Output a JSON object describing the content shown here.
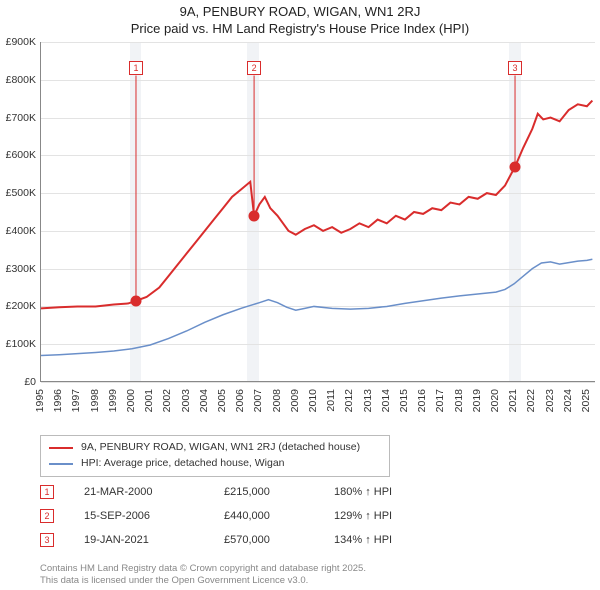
{
  "title": {
    "line1": "9A, PENBURY ROAD, WIGAN, WN1 2RJ",
    "line2": "Price paid vs. HM Land Registry's House Price Index (HPI)"
  },
  "chart": {
    "type": "line",
    "background_color": "#ffffff",
    "grid_color": "#e3e3e3",
    "axis_color": "#888888",
    "label_fontsize": 10.5,
    "x": {
      "min": 1995,
      "max": 2025.5,
      "ticks": [
        1995,
        1996,
        1997,
        1998,
        1999,
        2000,
        2001,
        2002,
        2003,
        2004,
        2005,
        2006,
        2007,
        2008,
        2009,
        2010,
        2011,
        2012,
        2013,
        2014,
        2015,
        2016,
        2017,
        2018,
        2019,
        2020,
        2021,
        2022,
        2023,
        2024,
        2025
      ],
      "bands": [
        {
          "from": 1999.9,
          "to": 2000.5,
          "color": "#f1f3f6"
        },
        {
          "from": 2006.3,
          "to": 2007.0,
          "color": "#f1f3f6"
        },
        {
          "from": 2020.7,
          "to": 2021.4,
          "color": "#f1f3f6"
        }
      ]
    },
    "y": {
      "min": 0,
      "max": 900000,
      "ticks": [
        {
          "v": 0,
          "label": "£0"
        },
        {
          "v": 100000,
          "label": "£100K"
        },
        {
          "v": 200000,
          "label": "£200K"
        },
        {
          "v": 300000,
          "label": "£300K"
        },
        {
          "v": 400000,
          "label": "£400K"
        },
        {
          "v": 500000,
          "label": "£500K"
        },
        {
          "v": 600000,
          "label": "£600K"
        },
        {
          "v": 700000,
          "label": "£700K"
        },
        {
          "v": 800000,
          "label": "£800K"
        },
        {
          "v": 900000,
          "label": "£900K"
        }
      ]
    },
    "series": [
      {
        "name": "price_paid",
        "label": "9A, PENBURY ROAD, WIGAN, WN1 2RJ (detached house)",
        "color": "#d92c2c",
        "line_width": 2,
        "points": [
          [
            1995,
            195000
          ],
          [
            1996,
            198000
          ],
          [
            1997,
            200000
          ],
          [
            1998,
            200000
          ],
          [
            1999,
            205000
          ],
          [
            1999.8,
            208000
          ],
          [
            2000.22,
            215000
          ],
          [
            2000.8,
            225000
          ],
          [
            2001.5,
            250000
          ],
          [
            2002,
            280000
          ],
          [
            2002.5,
            310000
          ],
          [
            2003,
            340000
          ],
          [
            2003.5,
            370000
          ],
          [
            2004,
            400000
          ],
          [
            2004.5,
            430000
          ],
          [
            2005,
            460000
          ],
          [
            2005.5,
            490000
          ],
          [
            2006,
            510000
          ],
          [
            2006.5,
            530000
          ],
          [
            2006.71,
            440000
          ],
          [
            2007,
            470000
          ],
          [
            2007.3,
            490000
          ],
          [
            2007.6,
            460000
          ],
          [
            2008,
            440000
          ],
          [
            2008.3,
            420000
          ],
          [
            2008.6,
            400000
          ],
          [
            2009,
            390000
          ],
          [
            2009.5,
            405000
          ],
          [
            2010,
            415000
          ],
          [
            2010.5,
            400000
          ],
          [
            2011,
            410000
          ],
          [
            2011.5,
            395000
          ],
          [
            2012,
            405000
          ],
          [
            2012.5,
            420000
          ],
          [
            2013,
            410000
          ],
          [
            2013.5,
            430000
          ],
          [
            2014,
            420000
          ],
          [
            2014.5,
            440000
          ],
          [
            2015,
            430000
          ],
          [
            2015.5,
            450000
          ],
          [
            2016,
            445000
          ],
          [
            2016.5,
            460000
          ],
          [
            2017,
            455000
          ],
          [
            2017.5,
            475000
          ],
          [
            2018,
            470000
          ],
          [
            2018.5,
            490000
          ],
          [
            2019,
            485000
          ],
          [
            2019.5,
            500000
          ],
          [
            2020,
            495000
          ],
          [
            2020.5,
            520000
          ],
          [
            2021.05,
            570000
          ],
          [
            2021.5,
            620000
          ],
          [
            2022,
            670000
          ],
          [
            2022.3,
            710000
          ],
          [
            2022.6,
            695000
          ],
          [
            2023,
            700000
          ],
          [
            2023.5,
            690000
          ],
          [
            2024,
            720000
          ],
          [
            2024.5,
            735000
          ],
          [
            2025,
            730000
          ],
          [
            2025.3,
            745000
          ]
        ]
      },
      {
        "name": "hpi",
        "label": "HPI: Average price, detached house, Wigan",
        "color": "#6a8fc9",
        "line_width": 1.5,
        "points": [
          [
            1995,
            70000
          ],
          [
            1996,
            72000
          ],
          [
            1997,
            75000
          ],
          [
            1998,
            78000
          ],
          [
            1999,
            82000
          ],
          [
            2000,
            88000
          ],
          [
            2001,
            98000
          ],
          [
            2002,
            115000
          ],
          [
            2003,
            135000
          ],
          [
            2004,
            158000
          ],
          [
            2005,
            178000
          ],
          [
            2006,
            195000
          ],
          [
            2007,
            210000
          ],
          [
            2007.5,
            218000
          ],
          [
            2008,
            210000
          ],
          [
            2008.5,
            198000
          ],
          [
            2009,
            190000
          ],
          [
            2009.5,
            195000
          ],
          [
            2010,
            200000
          ],
          [
            2011,
            195000
          ],
          [
            2012,
            193000
          ],
          [
            2013,
            195000
          ],
          [
            2014,
            200000
          ],
          [
            2015,
            208000
          ],
          [
            2016,
            215000
          ],
          [
            2017,
            222000
          ],
          [
            2018,
            228000
          ],
          [
            2019,
            233000
          ],
          [
            2020,
            238000
          ],
          [
            2020.5,
            245000
          ],
          [
            2021,
            260000
          ],
          [
            2021.5,
            280000
          ],
          [
            2022,
            300000
          ],
          [
            2022.5,
            315000
          ],
          [
            2023,
            318000
          ],
          [
            2023.5,
            312000
          ],
          [
            2024,
            316000
          ],
          [
            2024.5,
            320000
          ],
          [
            2025,
            322000
          ],
          [
            2025.3,
            325000
          ]
        ]
      }
    ],
    "markers": [
      {
        "idx": "1",
        "x": 2000.22,
        "y": 215000,
        "box_y": 830000
      },
      {
        "idx": "2",
        "x": 2006.71,
        "y": 440000,
        "box_y": 830000
      },
      {
        "idx": "3",
        "x": 2021.05,
        "y": 570000,
        "box_y": 830000
      }
    ]
  },
  "legend": {
    "items": [
      {
        "color": "#d92c2c",
        "label": "9A, PENBURY ROAD, WIGAN, WN1 2RJ (detached house)"
      },
      {
        "color": "#6a8fc9",
        "label": "HPI: Average price, detached house, Wigan"
      }
    ]
  },
  "datapoints": [
    {
      "idx": "1",
      "date": "21-MAR-2000",
      "price": "£215,000",
      "pct": "180% ↑ HPI"
    },
    {
      "idx": "2",
      "date": "15-SEP-2006",
      "price": "£440,000",
      "pct": "129% ↑ HPI"
    },
    {
      "idx": "3",
      "date": "19-JAN-2021",
      "price": "£570,000",
      "pct": "134% ↑ HPI"
    }
  ],
  "footer": {
    "line1": "Contains HM Land Registry data © Crown copyright and database right 2025.",
    "line2": "This data is licensed under the Open Government Licence v3.0."
  }
}
